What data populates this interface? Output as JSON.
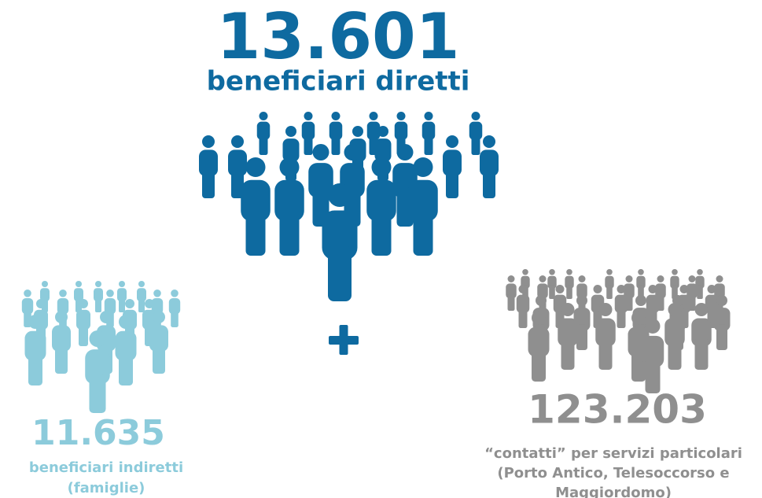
{
  "main": {
    "number": "13.601",
    "label": "beneficiari diretti"
  },
  "left": {
    "number": "11.635",
    "lines": [
      "beneficiari indiretti",
      "(famiglie)"
    ]
  },
  "right": {
    "number": "123.203",
    "lines": [
      "“contatti” per servizi particolari",
      "(Porto Antico, Telesoccorso e",
      "Maggiordomo)"
    ]
  }
}
